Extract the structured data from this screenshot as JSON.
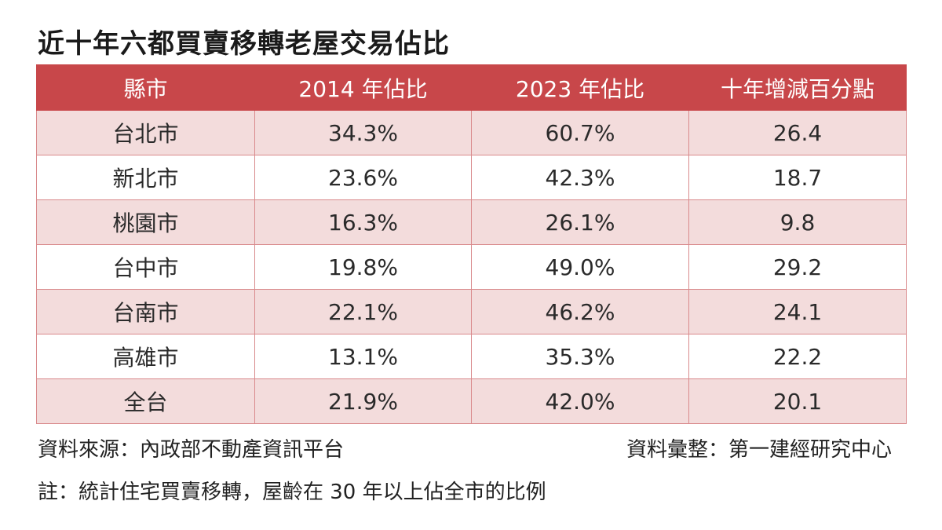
{
  "title": "近十年六都買賣移轉老屋交易佔比",
  "table": {
    "headers": [
      "縣市",
      "2014 年佔比",
      "2023 年佔比",
      "十年增減百分點"
    ],
    "rows": [
      [
        "台北市",
        "34.3%",
        "60.7%",
        "26.4"
      ],
      [
        "新北市",
        "23.6%",
        "42.3%",
        "18.7"
      ],
      [
        "桃園市",
        "16.3%",
        "26.1%",
        "9.8"
      ],
      [
        "台中市",
        "19.8%",
        "49.0%",
        "29.2"
      ],
      [
        "台南市",
        "22.1%",
        "46.2%",
        "24.1"
      ],
      [
        "高雄市",
        "13.1%",
        "35.3%",
        "22.2"
      ],
      [
        "全台",
        "21.9%",
        "42.0%",
        "20.1"
      ]
    ]
  },
  "source": "資料來源：內政部不動產資訊平台",
  "compiled_by": "資料彙整：第一建經研究中心",
  "footnote": "註：統計住宅買賣移轉，屋齡在 30 年以上佔全市的比例",
  "colors": {
    "header_bg": "#c8474a",
    "header_text": "#ffffff",
    "shaded_row": "#f3dcdc",
    "border": "#d98a8c"
  }
}
